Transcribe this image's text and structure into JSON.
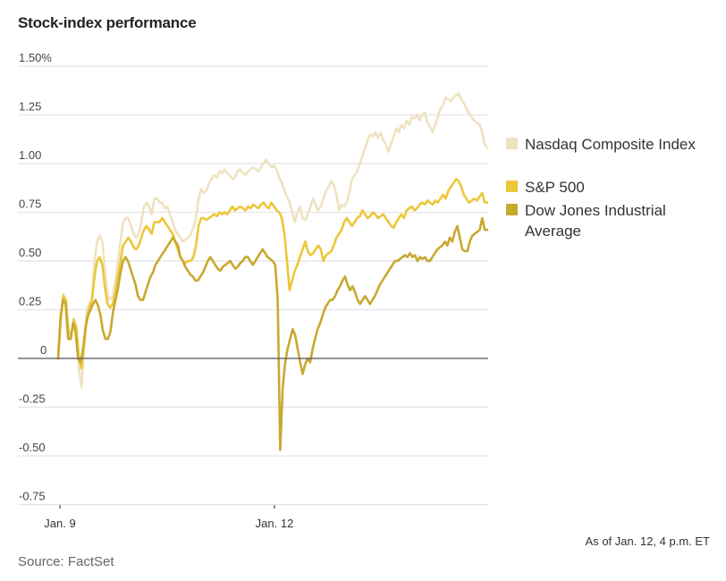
{
  "chart_data": {
    "type": "line",
    "title": "Stock-index performance",
    "xlabel": "",
    "ylabel": "",
    "ylim": [
      -0.75,
      1.5
    ],
    "yticks": [
      {
        "value": 1.5,
        "label": "1.50%"
      },
      {
        "value": 1.25,
        "label": "1.25"
      },
      {
        "value": 1.0,
        "label": "1.00"
      },
      {
        "value": 0.75,
        "label": "0.75"
      },
      {
        "value": 0.5,
        "label": "0.50"
      },
      {
        "value": 0.25,
        "label": "0.25"
      },
      {
        "value": 0,
        "label": "0"
      },
      {
        "value": -0.25,
        "label": "-0.25"
      },
      {
        "value": -0.5,
        "label": "-0.50"
      },
      {
        "value": -0.75,
        "label": "-0.75"
      }
    ],
    "xticks": [
      {
        "position": 0,
        "label": "Jan. 9"
      },
      {
        "position": 0.504,
        "label": "Jan. 12"
      }
    ],
    "grid": true,
    "legend_position": "right",
    "series": [
      {
        "name": "Nasdaq Composite Index",
        "color": "#efe2c0",
        "values": [
          0.0,
          0.2,
          0.33,
          0.3,
          0.1,
          0.1,
          0.2,
          0.15,
          -0.05,
          -0.15,
          0.05,
          0.25,
          0.28,
          0.3,
          0.5,
          0.6,
          0.63,
          0.6,
          0.45,
          0.33,
          0.3,
          0.32,
          0.4,
          0.5,
          0.6,
          0.7,
          0.72,
          0.72,
          0.68,
          0.64,
          0.62,
          0.64,
          0.7,
          0.78,
          0.8,
          0.78,
          0.74,
          0.82,
          0.82,
          0.8,
          0.8,
          0.77,
          0.78,
          0.74,
          0.7,
          0.66,
          0.64,
          0.62,
          0.6,
          0.61,
          0.62,
          0.64,
          0.67,
          0.72,
          0.82,
          0.87,
          0.85,
          0.86,
          0.9,
          0.92,
          0.94,
          0.93,
          0.96,
          0.95,
          0.97,
          0.95,
          0.94,
          0.92,
          0.93,
          0.96,
          0.97,
          0.95,
          0.94,
          0.96,
          0.97,
          0.98,
          0.97,
          0.96,
          0.98,
          1.0,
          1.02,
          1.0,
          0.98,
          0.99,
          0.97,
          0.93,
          0.9,
          0.86,
          0.83,
          0.8,
          0.75,
          0.7,
          0.75,
          0.78,
          0.72,
          0.71,
          0.74,
          0.78,
          0.82,
          0.79,
          0.76,
          0.78,
          0.82,
          0.86,
          0.88,
          0.91,
          0.89,
          0.84,
          0.76,
          0.79,
          0.78,
          0.8,
          0.85,
          0.92,
          0.94,
          0.96,
          1.0,
          1.04,
          1.08,
          1.12,
          1.15,
          1.14,
          1.16,
          1.13,
          1.16,
          1.12,
          1.1,
          1.06,
          1.1,
          1.14,
          1.18,
          1.16,
          1.2,
          1.18,
          1.22,
          1.2,
          1.24,
          1.23,
          1.25,
          1.22,
          1.25,
          1.26,
          1.21,
          1.19,
          1.16,
          1.2,
          1.24,
          1.28,
          1.3,
          1.34,
          1.33,
          1.32,
          1.34,
          1.35,
          1.36,
          1.33,
          1.31,
          1.28,
          1.26,
          1.24,
          1.22,
          1.21,
          1.2,
          1.16,
          1.1,
          1.08
        ]
      },
      {
        "name": "S&P 500",
        "color": "#ecc73a",
        "values": [
          0.0,
          0.2,
          0.32,
          0.3,
          0.14,
          0.12,
          0.2,
          0.16,
          0.0,
          -0.05,
          0.08,
          0.2,
          0.26,
          0.3,
          0.42,
          0.5,
          0.52,
          0.48,
          0.36,
          0.28,
          0.26,
          0.28,
          0.34,
          0.42,
          0.5,
          0.58,
          0.6,
          0.62,
          0.6,
          0.57,
          0.56,
          0.58,
          0.62,
          0.66,
          0.68,
          0.66,
          0.64,
          0.7,
          0.7,
          0.7,
          0.72,
          0.7,
          0.68,
          0.66,
          0.64,
          0.6,
          0.56,
          0.52,
          0.5,
          0.49,
          0.5,
          0.5,
          0.52,
          0.58,
          0.68,
          0.72,
          0.72,
          0.71,
          0.72,
          0.73,
          0.74,
          0.73,
          0.75,
          0.74,
          0.75,
          0.74,
          0.76,
          0.78,
          0.76,
          0.77,
          0.78,
          0.77,
          0.76,
          0.78,
          0.77,
          0.79,
          0.78,
          0.77,
          0.79,
          0.8,
          0.78,
          0.77,
          0.8,
          0.78,
          0.76,
          0.75,
          0.72,
          0.64,
          0.5,
          0.35,
          0.4,
          0.45,
          0.48,
          0.52,
          0.56,
          0.6,
          0.55,
          0.53,
          0.54,
          0.56,
          0.58,
          0.56,
          0.5,
          0.53,
          0.54,
          0.55,
          0.58,
          0.62,
          0.64,
          0.66,
          0.7,
          0.72,
          0.7,
          0.68,
          0.7,
          0.72,
          0.73,
          0.76,
          0.74,
          0.72,
          0.73,
          0.75,
          0.74,
          0.72,
          0.73,
          0.74,
          0.72,
          0.7,
          0.68,
          0.67,
          0.7,
          0.72,
          0.74,
          0.72,
          0.76,
          0.77,
          0.78,
          0.76,
          0.77,
          0.79,
          0.8,
          0.79,
          0.81,
          0.8,
          0.79,
          0.81,
          0.8,
          0.82,
          0.84,
          0.82,
          0.86,
          0.88,
          0.9,
          0.92,
          0.91,
          0.88,
          0.84,
          0.82,
          0.8,
          0.81,
          0.82,
          0.81,
          0.83,
          0.85,
          0.8,
          0.8
        ]
      },
      {
        "name": "Dow Jones Industrial Average",
        "color": "#c8a930",
        "values": [
          0.0,
          0.22,
          0.3,
          0.28,
          0.1,
          0.1,
          0.18,
          0.14,
          0.0,
          -0.02,
          0.05,
          0.16,
          0.22,
          0.25,
          0.28,
          0.3,
          0.27,
          0.22,
          0.14,
          0.1,
          0.1,
          0.14,
          0.24,
          0.3,
          0.36,
          0.44,
          0.5,
          0.52,
          0.5,
          0.46,
          0.42,
          0.38,
          0.32,
          0.3,
          0.3,
          0.34,
          0.38,
          0.42,
          0.44,
          0.48,
          0.5,
          0.52,
          0.54,
          0.56,
          0.58,
          0.6,
          0.62,
          0.6,
          0.58,
          0.52,
          0.5,
          0.47,
          0.45,
          0.43,
          0.42,
          0.4,
          0.4,
          0.42,
          0.44,
          0.47,
          0.5,
          0.52,
          0.5,
          0.48,
          0.46,
          0.45,
          0.47,
          0.48,
          0.49,
          0.5,
          0.48,
          0.46,
          0.47,
          0.49,
          0.5,
          0.52,
          0.52,
          0.5,
          0.48,
          0.5,
          0.52,
          0.54,
          0.56,
          0.54,
          0.52,
          0.51,
          0.5,
          0.48,
          0.3,
          -0.47,
          -0.15,
          -0.02,
          0.05,
          0.1,
          0.15,
          0.12,
          0.05,
          -0.02,
          -0.08,
          -0.03,
          0.0,
          -0.02,
          0.05,
          0.1,
          0.15,
          0.18,
          0.22,
          0.26,
          0.28,
          0.3,
          0.3,
          0.32,
          0.35,
          0.37,
          0.4,
          0.42,
          0.38,
          0.35,
          0.37,
          0.34,
          0.3,
          0.28,
          0.3,
          0.32,
          0.3,
          0.28,
          0.3,
          0.32,
          0.35,
          0.38,
          0.4,
          0.42,
          0.44,
          0.46,
          0.48,
          0.5,
          0.5,
          0.51,
          0.52,
          0.53,
          0.52,
          0.54,
          0.52,
          0.53,
          0.5,
          0.52,
          0.51,
          0.52,
          0.5,
          0.5,
          0.52,
          0.54,
          0.56,
          0.57,
          0.58,
          0.6,
          0.58,
          0.62,
          0.6,
          0.65,
          0.68,
          0.62,
          0.56,
          0.55,
          0.55,
          0.6,
          0.63,
          0.64,
          0.65,
          0.66,
          0.72,
          0.66,
          0.66
        ]
      }
    ]
  },
  "header": {
    "title": "Stock-index performance"
  },
  "legend": [
    {
      "label": "Nasdaq Composite Index",
      "color": "#efe2c0"
    },
    {
      "label": "S&P 500",
      "color": "#ecc73a"
    },
    {
      "label": "Dow Jones Industrial",
      "label2": "Average",
      "color": "#c8a930"
    }
  ],
  "footer": {
    "as_of": "As of Jan. 12, 4 p.m. ET",
    "source": "Source: FactSet"
  }
}
